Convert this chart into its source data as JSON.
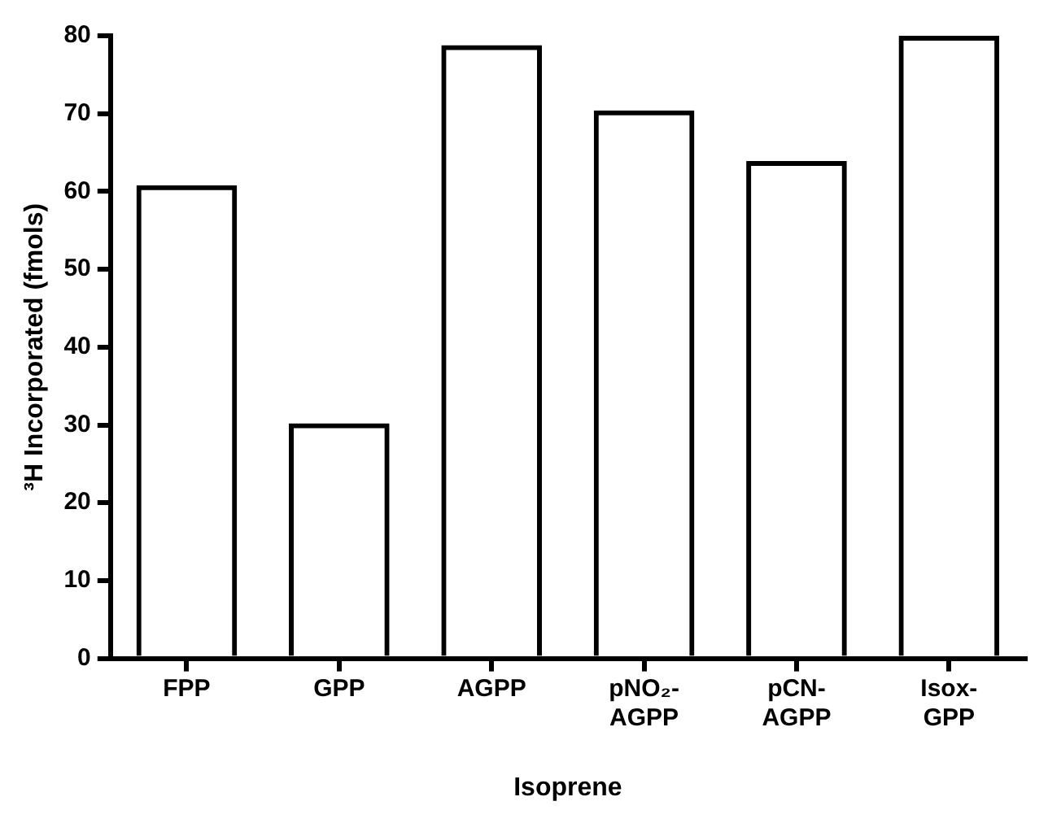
{
  "chart_data": {
    "type": "bar",
    "xlabel": "Isoprene",
    "ylabel": "³H Incorporated (fmols)",
    "categories": [
      "FPP",
      "GPP",
      "AGPP",
      "pNO₂-\nAGPP",
      "pCN-\nAGPP",
      "Isox-\nGPP"
    ],
    "values": [
      60.8,
      30.2,
      78.8,
      70.4,
      63.9,
      80
    ],
    "color": "#000000",
    "ylim": [
      0,
      80
    ],
    "yticks": [
      0,
      10,
      20,
      30,
      40,
      50,
      60,
      70,
      80
    ],
    "grid": false,
    "legend": false
  }
}
